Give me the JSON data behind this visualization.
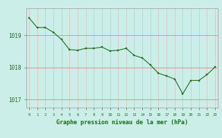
{
  "x": [
    0,
    1,
    2,
    3,
    4,
    5,
    6,
    7,
    8,
    9,
    10,
    11,
    12,
    13,
    14,
    15,
    16,
    17,
    18,
    19,
    20,
    21,
    22,
    23
  ],
  "y": [
    1019.55,
    1019.25,
    1019.25,
    1019.1,
    1018.88,
    1018.56,
    1018.54,
    1018.6,
    1018.6,
    1018.64,
    1018.52,
    1018.54,
    1018.6,
    1018.38,
    1018.3,
    1018.08,
    1017.82,
    1017.74,
    1017.64,
    1017.18,
    1017.6,
    1017.6,
    1017.78,
    1018.02
  ],
  "line_color": "#1a6b1a",
  "marker_color": "#1a6b1a",
  "bg_color": "#cceee8",
  "grid_color_h": "#e88080",
  "grid_color_v": "#e0b0b0",
  "xlabel": "Graphe pression niveau de la mer (hPa)",
  "xlabel_color": "#1a6b1a",
  "tick_color": "#1a6b1a",
  "ylabel_ticks": [
    1017,
    1018,
    1019
  ],
  "ylim": [
    1016.75,
    1019.85
  ],
  "xlim": [
    -0.3,
    23.3
  ],
  "figwidth": 3.2,
  "figheight": 2.0,
  "dpi": 100
}
